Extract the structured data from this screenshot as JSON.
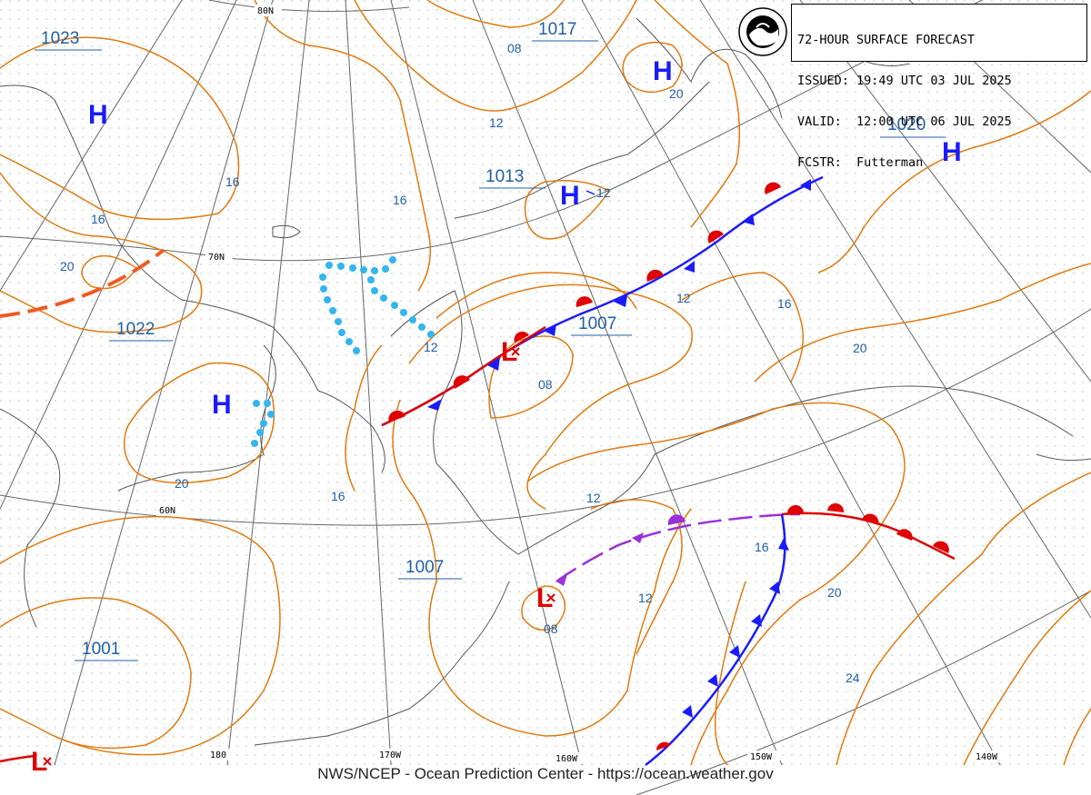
{
  "header": {
    "title": "72-HOUR SURFACE FORECAST",
    "issued_label": "ISSUED:",
    "issued": "19:49 UTC 03 JUL 2025",
    "valid_label": "VALID:",
    "valid": "12:00 UTC 06 JUL 2025",
    "forecaster_label": "FCSTR:",
    "forecaster": "Futterman"
  },
  "logo_text": "NOAA",
  "footer": "NWS/NCEP - Ocean Prediction Center - https://ocean.weather.gov",
  "colors": {
    "isobar": "#e07a10",
    "pressure_label": "#1f5fa8",
    "high": "#1a1aff",
    "low": "#e00000",
    "cold_front": "#1a1aff",
    "warm_front": "#e00000",
    "occluded_front": "#9b30d9",
    "trough": "#33b5ef",
    "grid": "#666666",
    "coast": "#555555"
  },
  "lat_labels": [
    "80N",
    "70N",
    "60N"
  ],
  "lon_labels": [
    "180",
    "170W",
    "160W",
    "150W",
    "140W"
  ],
  "isobar_labels": [
    "08",
    "12",
    "16",
    "20",
    "16",
    "20",
    "20",
    "16",
    "16",
    "12",
    "12",
    "16",
    "12",
    "08",
    "16",
    "12",
    "12",
    "16",
    "20",
    "16",
    "20",
    "24",
    "12",
    "08"
  ],
  "pressure_centers": [
    {
      "type": "H",
      "value": "1023"
    },
    {
      "type": "H",
      "value": "1017"
    },
    {
      "type": "H",
      "value": "1020"
    },
    {
      "type": "H",
      "value": "1013"
    },
    {
      "type": "L",
      "value": "1007"
    },
    {
      "type": "H",
      "value": "1022"
    },
    {
      "type": "L",
      "value": "1007"
    },
    {
      "type": "L",
      "value": "1001"
    }
  ]
}
